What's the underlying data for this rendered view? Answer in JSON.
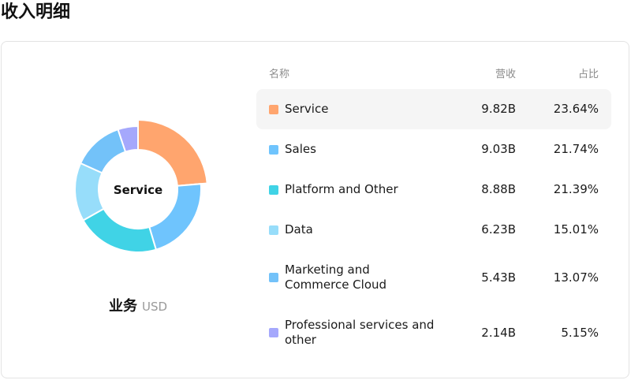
{
  "page": {
    "title": "收入明细"
  },
  "donut": {
    "center_label": "Service",
    "caption_name": "业务",
    "caption_unit": "USD"
  },
  "table": {
    "headers": {
      "name": "名称",
      "revenue": "营收",
      "share": "占比"
    }
  },
  "colors": {
    "highlight_bg": "#f5f5f5",
    "card_border": "#e3e3e3"
  },
  "chart_data": {
    "type": "pie",
    "variant": "donut",
    "selected": "Service",
    "unit": "USD",
    "categories": [
      "Service",
      "Sales",
      "Platform and Other",
      "Data",
      "Marketing and Commerce Cloud",
      "Professional services and other"
    ],
    "values": [
      9.82,
      9.03,
      8.88,
      6.23,
      5.43,
      2.14
    ],
    "value_labels": [
      "9.82B",
      "9.03B",
      "8.88B",
      "6.23B",
      "5.43B",
      "2.14B"
    ],
    "percent_labels": [
      "23.64%",
      "21.74%",
      "21.39%",
      "15.01%",
      "13.07%",
      "5.15%"
    ],
    "percents": [
      23.64,
      21.74,
      21.39,
      15.01,
      13.07,
      5.15
    ],
    "colors": [
      "#ffa56e",
      "#6fc4fd",
      "#40d3e6",
      "#97ddfa",
      "#73c2f9",
      "#a5a8fc"
    ]
  }
}
